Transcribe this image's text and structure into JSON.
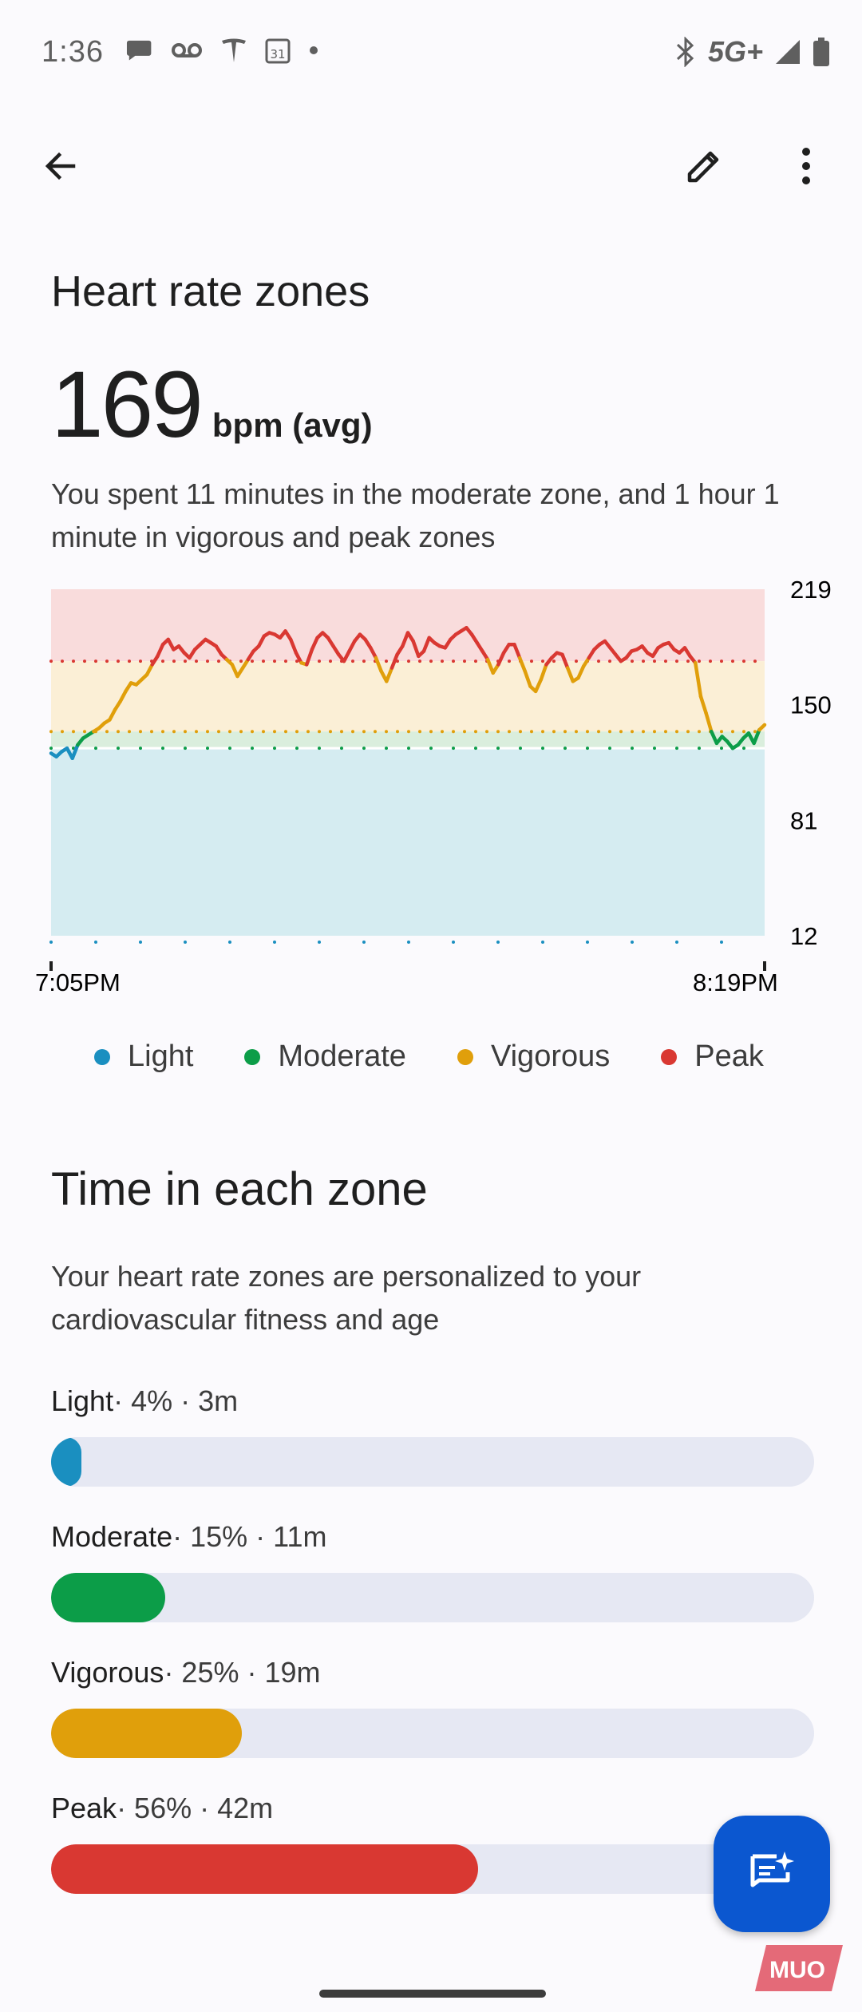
{
  "status_bar": {
    "time": "1:36",
    "network": "5G+"
  },
  "page": {
    "title": "Heart rate zones",
    "avg_value": "169",
    "avg_unit": "bpm (avg)",
    "summary": "You spent 11 minutes in the moderate zone, and 1 hour 1 minute in vigorous and peak zones"
  },
  "chart_data": {
    "type": "line",
    "x_start_label": "7:05PM",
    "x_end_label": "8:19PM",
    "y_ticks": [
      "219",
      "150",
      "81",
      "12"
    ],
    "ylim": [
      12,
      219
    ],
    "zone_thresholds": [
      124,
      134,
      176
    ],
    "zone_colors": {
      "light": "#1a8fc0",
      "moderate": "#0c9d48",
      "vigorous": "#e09f0b",
      "peak": "#d93832"
    },
    "series": [
      {
        "values": [
          121,
          119,
          122,
          124,
          118,
          126,
          130,
          132,
          134,
          136,
          139,
          141,
          147,
          152,
          158,
          163,
          162,
          165,
          168,
          174,
          179,
          186,
          189,
          183,
          185,
          181,
          178,
          183,
          186,
          189,
          187,
          185,
          180,
          177,
          174,
          167,
          172,
          177,
          182,
          185,
          191,
          193,
          192,
          190,
          194,
          189,
          181,
          175,
          174,
          183,
          190,
          193,
          190,
          185,
          180,
          176,
          182,
          188,
          192,
          189,
          184,
          178,
          170,
          164,
          172,
          180,
          185,
          193,
          188,
          179,
          182,
          190,
          187,
          185,
          184,
          189,
          192,
          194,
          196,
          192,
          187,
          182,
          177,
          169,
          174,
          181,
          186,
          186,
          178,
          170,
          161,
          158,
          165,
          174,
          178,
          181,
          180,
          172,
          164,
          166,
          173,
          178,
          183,
          186,
          188,
          184,
          180,
          176,
          178,
          182,
          183,
          185,
          181,
          179,
          184,
          186,
          187,
          183,
          181,
          184,
          179,
          175,
          155,
          145,
          134,
          127,
          131,
          128,
          124,
          126,
          130,
          133,
          127,
          135,
          138
        ]
      }
    ]
  },
  "legend": [
    {
      "label": "Light",
      "color": "#1a8fc0"
    },
    {
      "label": "Moderate",
      "color": "#0c9d48"
    },
    {
      "label": "Vigorous",
      "color": "#e09f0b"
    },
    {
      "label": "Peak",
      "color": "#d93832"
    }
  ],
  "time_section": {
    "title": "Time in each zone",
    "description": "Your heart rate zones are personalized to your cardiovascular fitness and age",
    "zones": [
      {
        "name": "Light",
        "detail": " · 4% · 3m",
        "percent": 4,
        "color": "#1a8fc0"
      },
      {
        "name": "Moderate",
        "detail": " · 15% · 11m",
        "percent": 15,
        "color": "#0c9d48"
      },
      {
        "name": "Vigorous",
        "detail": " · 25% · 19m",
        "percent": 25,
        "color": "#e09f0b"
      },
      {
        "name": "Peak",
        "detail": " · 56% · 42m",
        "percent": 56,
        "color": "#d93832"
      }
    ]
  },
  "watermark": "MUO"
}
